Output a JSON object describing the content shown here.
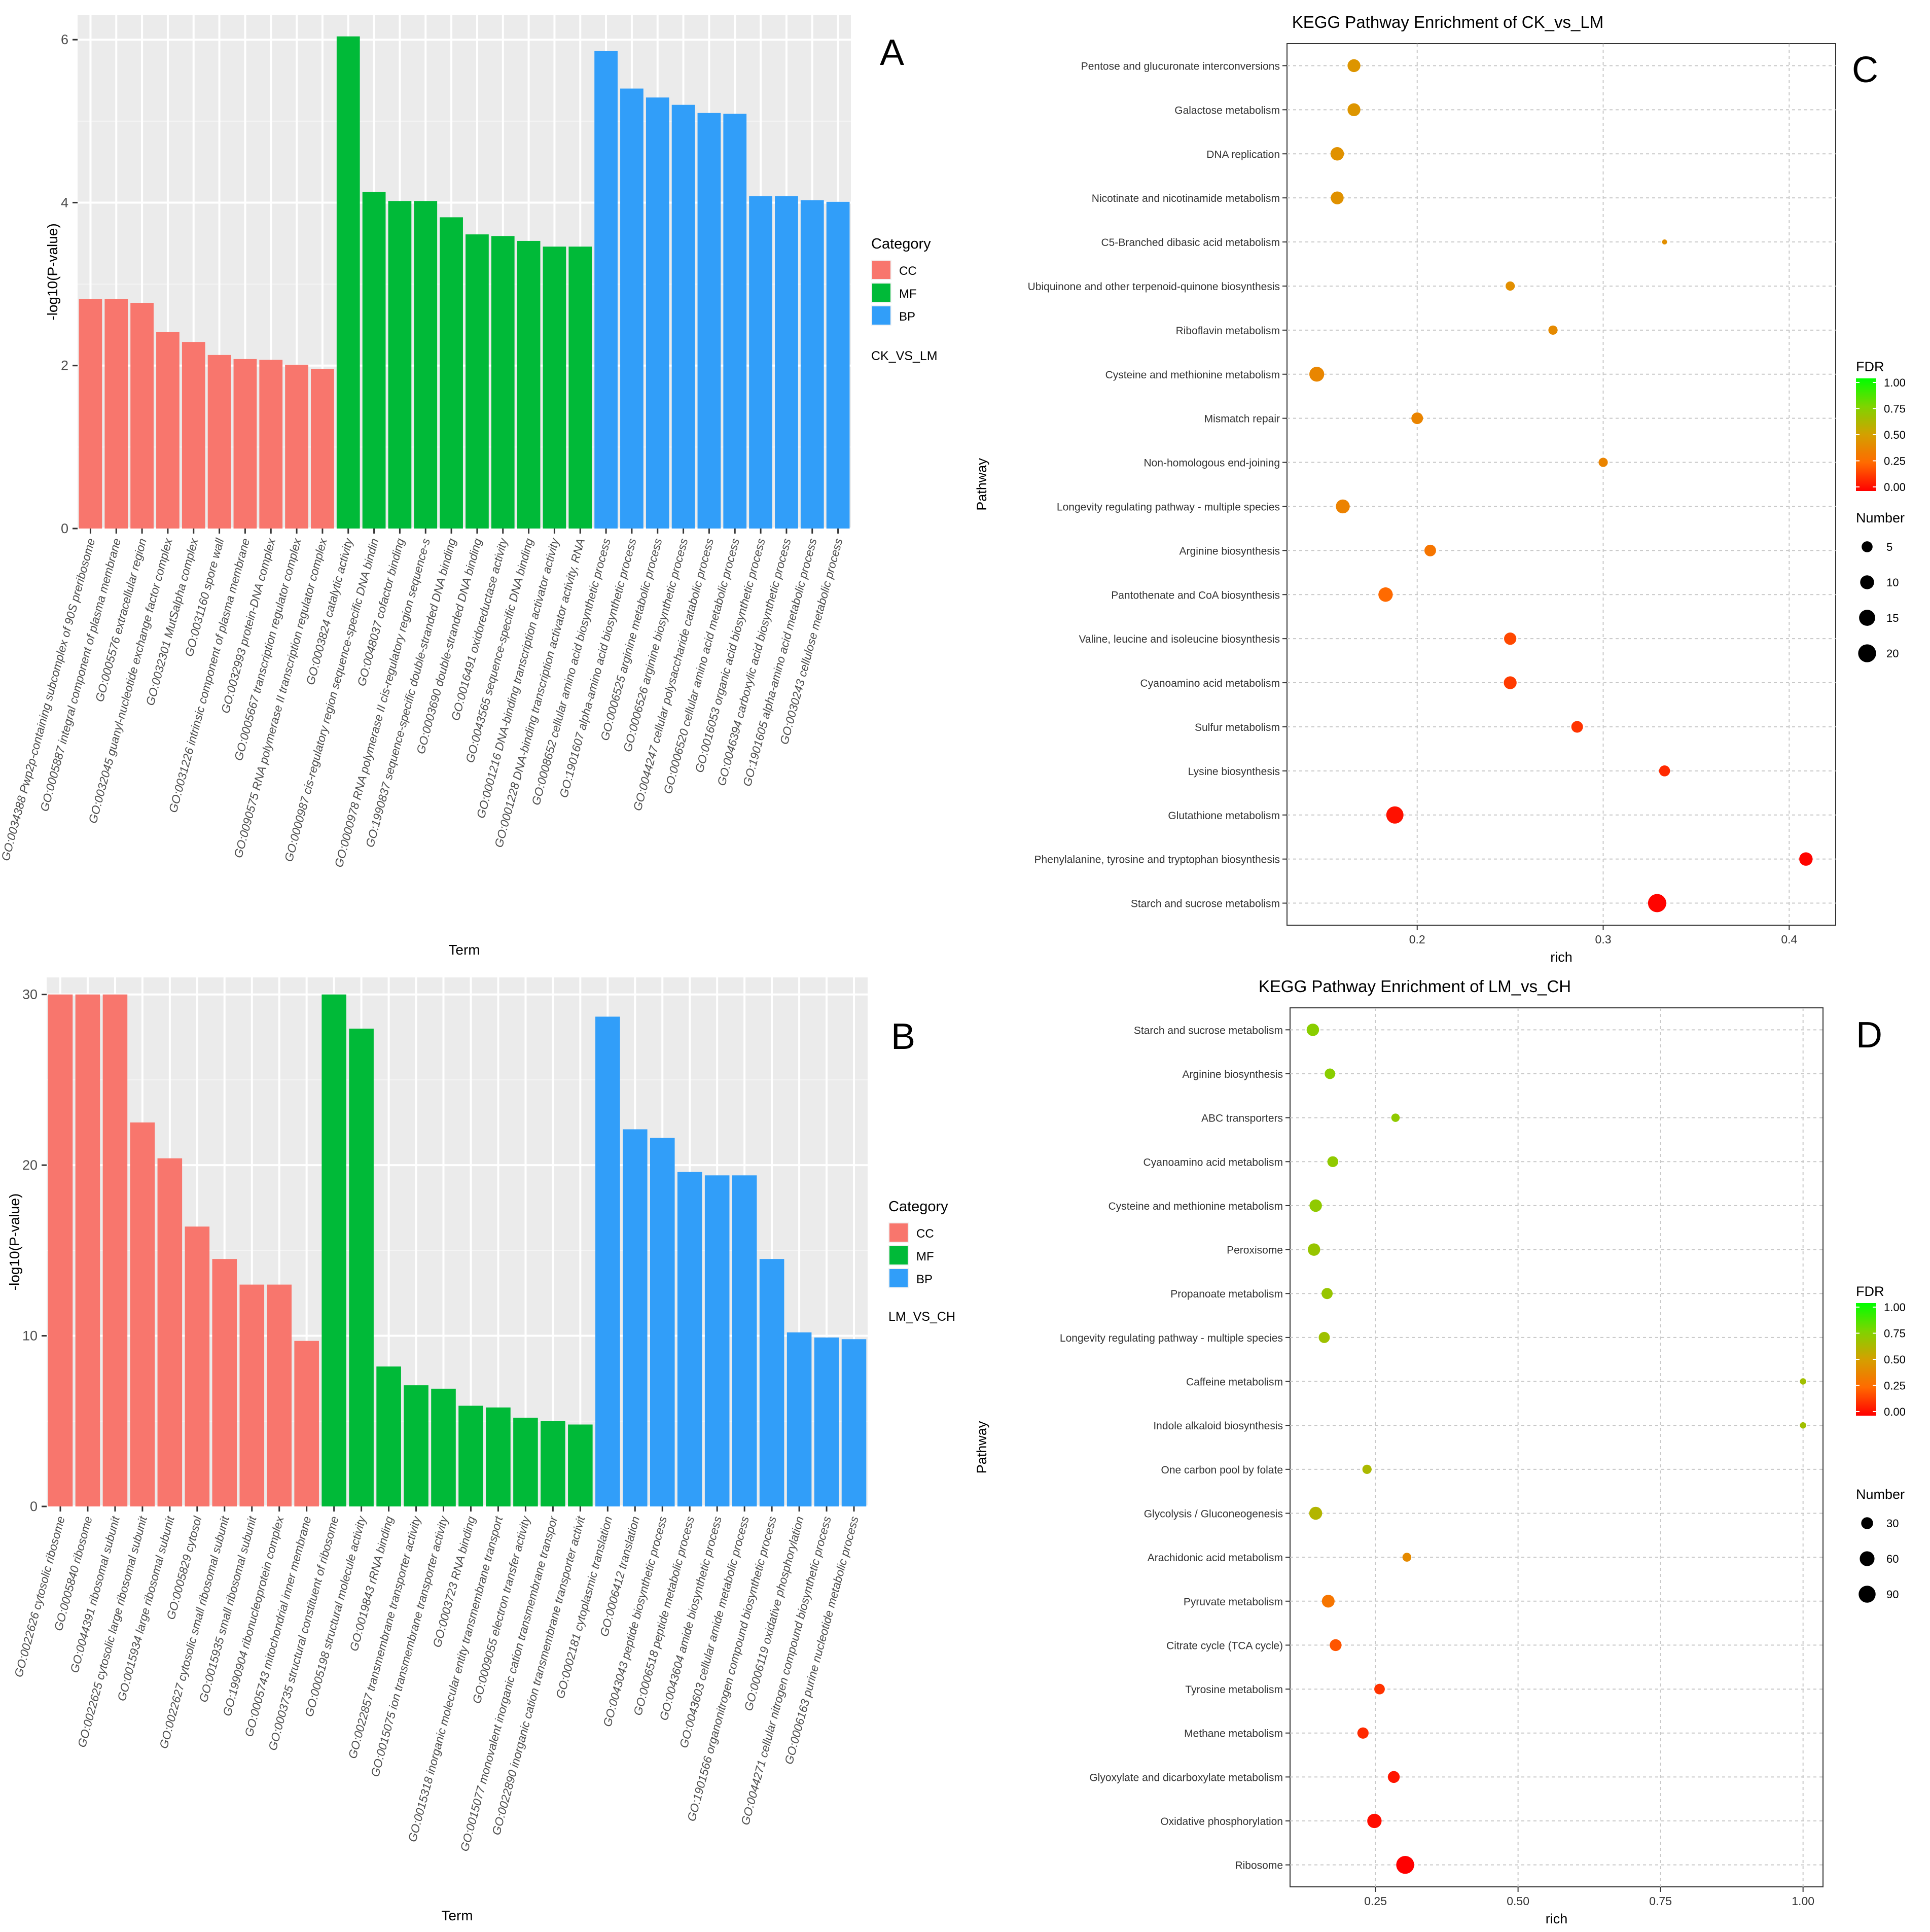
{
  "chart_data": [
    {
      "type": "bar",
      "panel_label": "A",
      "comparison_label": "CK_VS_LM",
      "xlabel": "Term",
      "ylabel": "-log10(P-value)",
      "ylim": [
        0,
        6.3
      ],
      "yticks": [
        0,
        2,
        4,
        6
      ],
      "legend": {
        "title": "Category",
        "position": "right",
        "entries": [
          {
            "name": "CC",
            "color": "#F8766D"
          },
          {
            "name": "MF",
            "color": "#00BA38"
          },
          {
            "name": "BP",
            "color": "#319EF9"
          }
        ]
      },
      "categories": [
        "GO:0034388 Pwp2p-containing subcomplex of 90S preribosome",
        "GO:0005887 integral component of plasma membrane",
        "GO:0005576 extracellular region",
        "GO:0032045 guanyl-nucleotide exchange factor complex",
        "GO:0032301 MutSalpha complex",
        "GO:0031160 spore wall",
        "GO:0031226 intrinsic component of plasma membrane",
        "GO:0032993 protein-DNA complex",
        "GO:0005667 transcription regulator complex",
        "GO:0090575 RNA polymerase II transcription regulator complex",
        "GO:0003824 catalytic activity",
        "GO:0000987 cis-regulatory region sequence-specific DNA bindin",
        "GO:0048037 cofactor binding",
        "GO:0000978 RNA polymerase II cis-regulatory region sequence-s",
        "GO:1990837 sequence-specific double-stranded DNA binding",
        "GO:0003690 double-stranded DNA binding",
        "GO:0016491 oxidoreductase activity",
        "GO:0043565 sequence-specific DNA binding",
        "GO:0001216 DNA-binding transcription activator activity",
        "GO:0001228 DNA-binding transcription activator activity, RNA",
        "GO:0008652 cellular amino acid biosynthetic process",
        "GO:1901607 alpha-amino acid biosynthetic process",
        "GO:0006525 arginine metabolic process",
        "GO:0006526 arginine biosynthetic process",
        "GO:0044247 cellular polysaccharide catabolic process",
        "GO:0006520 cellular amino acid metabolic process",
        "GO:0016053 organic acid biosynthetic process",
        "GO:0046394 carboxylic acid biosynthetic process",
        "GO:1901605 alpha-amino acid metabolic process",
        "GO:0030243 cellulose metabolic process"
      ],
      "values": [
        2.82,
        2.82,
        2.77,
        2.41,
        2.29,
        2.13,
        2.08,
        2.07,
        2.01,
        1.96,
        6.04,
        4.13,
        4.02,
        4.02,
        3.82,
        3.61,
        3.59,
        3.53,
        3.46,
        3.46,
        5.86,
        5.4,
        5.29,
        5.2,
        5.1,
        5.09,
        4.08,
        4.08,
        4.03,
        4.01
      ],
      "category_group": [
        "CC",
        "CC",
        "CC",
        "CC",
        "CC",
        "CC",
        "CC",
        "CC",
        "CC",
        "CC",
        "MF",
        "MF",
        "MF",
        "MF",
        "MF",
        "MF",
        "MF",
        "MF",
        "MF",
        "MF",
        "BP",
        "BP",
        "BP",
        "BP",
        "BP",
        "BP",
        "BP",
        "BP",
        "BP",
        "BP"
      ]
    },
    {
      "type": "bar",
      "panel_label": "B",
      "comparison_label": "LM_VS_CH",
      "xlabel": "Term",
      "ylabel": "-log10(P-value)",
      "ylim": [
        0,
        31
      ],
      "yticks": [
        0,
        10,
        20,
        30
      ],
      "legend": {
        "title": "Category",
        "position": "right",
        "entries": [
          {
            "name": "CC",
            "color": "#F8766D"
          },
          {
            "name": "MF",
            "color": "#00BA38"
          },
          {
            "name": "BP",
            "color": "#319EF9"
          }
        ]
      },
      "categories": [
        "GO:0022626 cytosolic ribosome",
        "GO:0005840 ribosome",
        "GO:0044391 ribosomal subunit",
        "GO:0022625 cytosolic large ribosomal subunit",
        "GO:0015934 large ribosomal subunit",
        "GO:0005829 cytosol",
        "GO:0022627 cytosolic small ribosomal subunit",
        "GO:0015935 small ribosomal subunit",
        "GO:1990904 ribonucleoprotein complex",
        "GO:0005743 mitochondrial inner membrane",
        "GO:0003735 structural constituent of ribosome",
        "GO:0005198 structural molecule activity",
        "GO:0019843 rRNA binding",
        "GO:0022857 transmembrane transporter activity",
        "GO:0015075 ion transmembrane transporter activity",
        "GO:0003723 RNA binding",
        "GO:0015318 inorganic molecular entity transmembrane transport",
        "GO:0009055 electron transfer activity",
        "GO:0015077 monovalent inorganic cation transmembrane transpor",
        "GO:0022890 inorganic cation transmembrane transporter activit",
        "GO:0002181 cytoplasmic translation",
        "GO:0006412 translation",
        "GO:0043043 peptide biosynthetic process",
        "GO:0006518 peptide metabolic process",
        "GO:0043604 amide biosynthetic process",
        "GO:0043603 cellular amide metabolic process",
        "GO:1901566 organonitrogen compound biosynthetic process",
        "GO:0006119 oxidative phosphorylation",
        "GO:0044271 cellular nitrogen compound biosynthetic process",
        "GO:0006163 purine nucleotide metabolic process"
      ],
      "values": [
        30.0,
        30.0,
        30.0,
        22.5,
        20.4,
        16.4,
        14.5,
        13.0,
        13.0,
        9.7,
        30.0,
        28.0,
        8.2,
        7.1,
        6.9,
        5.9,
        5.8,
        5.2,
        5.0,
        4.8,
        28.7,
        22.1,
        21.6,
        19.6,
        19.4,
        19.4,
        14.5,
        10.2,
        9.9,
        9.8
      ],
      "category_group": [
        "CC",
        "CC",
        "CC",
        "CC",
        "CC",
        "CC",
        "CC",
        "CC",
        "CC",
        "CC",
        "MF",
        "MF",
        "MF",
        "MF",
        "MF",
        "MF",
        "MF",
        "MF",
        "MF",
        "MF",
        "BP",
        "BP",
        "BP",
        "BP",
        "BP",
        "BP",
        "BP",
        "BP",
        "BP",
        "BP"
      ]
    },
    {
      "type": "scatter",
      "panel_label": "C",
      "title": "KEGG Pathway Enrichment of CK_vs_LM",
      "xlabel": "rich",
      "ylabel": "Pathway",
      "xlim": [
        0.13,
        0.425
      ],
      "xticks": [
        0.2,
        0.3,
        0.4
      ],
      "xtick_labels": [
        "0.2",
        "0.3",
        "0.4"
      ],
      "grid": true,
      "color_legend": {
        "title": "FDR",
        "ticks": [
          "1.00",
          "0.75",
          "0.50",
          "0.25",
          "0.00"
        ]
      },
      "size_legend": {
        "title": "Number",
        "values": [
          5,
          10,
          15,
          20
        ]
      },
      "size_range": [
        1,
        21
      ],
      "points": [
        {
          "pathway": "Pentose and glucuronate interconversions",
          "rich": 0.166,
          "number": 8,
          "fdr": 0.45
        },
        {
          "pathway": "Galactose metabolism",
          "rich": 0.166,
          "number": 8,
          "fdr": 0.45
        },
        {
          "pathway": "DNA replication",
          "rich": 0.157,
          "number": 9,
          "fdr": 0.43
        },
        {
          "pathway": "Nicotinate and nicotinamide metabolism",
          "rich": 0.157,
          "number": 8,
          "fdr": 0.43
        },
        {
          "pathway": "C5-Branched dibasic acid metabolism",
          "rich": 0.333,
          "number": 1,
          "fdr": 0.42
        },
        {
          "pathway": "Ubiquinone and other terpenoid-quinone biosynthesis",
          "rich": 0.25,
          "number": 3,
          "fdr": 0.42
        },
        {
          "pathway": "Riboflavin metabolism",
          "rich": 0.273,
          "number": 3,
          "fdr": 0.4
        },
        {
          "pathway": "Cysteine and methionine metabolism",
          "rich": 0.146,
          "number": 12,
          "fdr": 0.38
        },
        {
          "pathway": "Mismatch repair",
          "rich": 0.2,
          "number": 6,
          "fdr": 0.37
        },
        {
          "pathway": "Non-homologous end-joining",
          "rich": 0.3,
          "number": 3,
          "fdr": 0.37
        },
        {
          "pathway": "Longevity regulating pathway - multiple species",
          "rich": 0.16,
          "number": 10,
          "fdr": 0.36
        },
        {
          "pathway": "Arginine biosynthesis",
          "rich": 0.207,
          "number": 6,
          "fdr": 0.3
        },
        {
          "pathway": "Pantothenate and CoA biosynthesis",
          "rich": 0.183,
          "number": 11,
          "fdr": 0.25
        },
        {
          "pathway": "Valine, leucine and isoleucine biosynthesis",
          "rich": 0.25,
          "number": 7,
          "fdr": 0.17
        },
        {
          "pathway": "Cyanoamino acid metabolism",
          "rich": 0.25,
          "number": 8,
          "fdr": 0.14
        },
        {
          "pathway": "Sulfur metabolism",
          "rich": 0.286,
          "number": 6,
          "fdr": 0.12
        },
        {
          "pathway": "Lysine biosynthesis",
          "rich": 0.333,
          "number": 5,
          "fdr": 0.1
        },
        {
          "pathway": "Glutathione metabolism",
          "rich": 0.188,
          "number": 18,
          "fdr": 0.04
        },
        {
          "pathway": "Phenylalanine, tyrosine and tryptophan biosynthesis",
          "rich": 0.409,
          "number": 9,
          "fdr": 0.01
        },
        {
          "pathway": "Starch and sucrose metabolism",
          "rich": 0.329,
          "number": 22,
          "fdr": 0.01
        }
      ]
    },
    {
      "type": "scatter",
      "panel_label": "D",
      "title": "KEGG Pathway Enrichment of LM_vs_CH",
      "xlabel": "rich",
      "ylabel": "Pathway",
      "xlim": [
        0.1,
        1.035
      ],
      "xticks": [
        0.25,
        0.5,
        0.75,
        1.0
      ],
      "xtick_labels": [
        "0.25",
        "0.50",
        "0.75",
        "1.00"
      ],
      "grid": true,
      "color_legend": {
        "title": "FDR",
        "ticks": [
          "1.00",
          "0.75",
          "0.50",
          "0.25",
          "0.00"
        ]
      },
      "size_legend": {
        "title": "Number",
        "values": [
          30,
          60,
          90
        ]
      },
      "size_range": [
        1,
        110
      ],
      "points": [
        {
          "pathway": "Starch and sucrose metabolism",
          "rich": 0.14,
          "number": 35,
          "fdr": 0.72
        },
        {
          "pathway": "Arginine biosynthesis",
          "rich": 0.17,
          "number": 20,
          "fdr": 0.72
        },
        {
          "pathway": "ABC transporters",
          "rich": 0.285,
          "number": 8,
          "fdr": 0.7
        },
        {
          "pathway": "Cyanoamino acid metabolism",
          "rich": 0.175,
          "number": 22,
          "fdr": 0.7
        },
        {
          "pathway": "Cysteine and methionine metabolism",
          "rich": 0.145,
          "number": 35,
          "fdr": 0.7
        },
        {
          "pathway": "Peroxisome",
          "rich": 0.142,
          "number": 35,
          "fdr": 0.68
        },
        {
          "pathway": "Propanoate metabolism",
          "rich": 0.165,
          "number": 24,
          "fdr": 0.68
        },
        {
          "pathway": "Longevity regulating pathway - multiple species",
          "rich": 0.16,
          "number": 24,
          "fdr": 0.66
        },
        {
          "pathway": "Caffeine metabolism",
          "rich": 1.0,
          "number": 2,
          "fdr": 0.65
        },
        {
          "pathway": "Indole alkaloid biosynthesis",
          "rich": 1.0,
          "number": 2,
          "fdr": 0.65
        },
        {
          "pathway": "One carbon pool by folate",
          "rich": 0.235,
          "number": 12,
          "fdr": 0.62
        },
        {
          "pathway": "Glycolysis / Gluconeogenesis",
          "rich": 0.145,
          "number": 40,
          "fdr": 0.6
        },
        {
          "pathway": "Arachidonic acid metabolism",
          "rich": 0.305,
          "number": 10,
          "fdr": 0.4
        },
        {
          "pathway": "Pyruvate metabolism",
          "rich": 0.167,
          "number": 38,
          "fdr": 0.3
        },
        {
          "pathway": "Citrate cycle (TCA cycle)",
          "rich": 0.18,
          "number": 30,
          "fdr": 0.2
        },
        {
          "pathway": "Tyrosine metabolism",
          "rich": 0.257,
          "number": 20,
          "fdr": 0.12
        },
        {
          "pathway": "Methane metabolism",
          "rich": 0.228,
          "number": 25,
          "fdr": 0.1
        },
        {
          "pathway": "Glyoxylate and dicarboxylate metabolism",
          "rich": 0.282,
          "number": 30,
          "fdr": 0.05
        },
        {
          "pathway": "Oxidative phosphorylation",
          "rich": 0.248,
          "number": 55,
          "fdr": 0.03
        },
        {
          "pathway": "Ribosome",
          "rich": 0.302,
          "number": 105,
          "fdr": 0.0
        }
      ]
    }
  ]
}
